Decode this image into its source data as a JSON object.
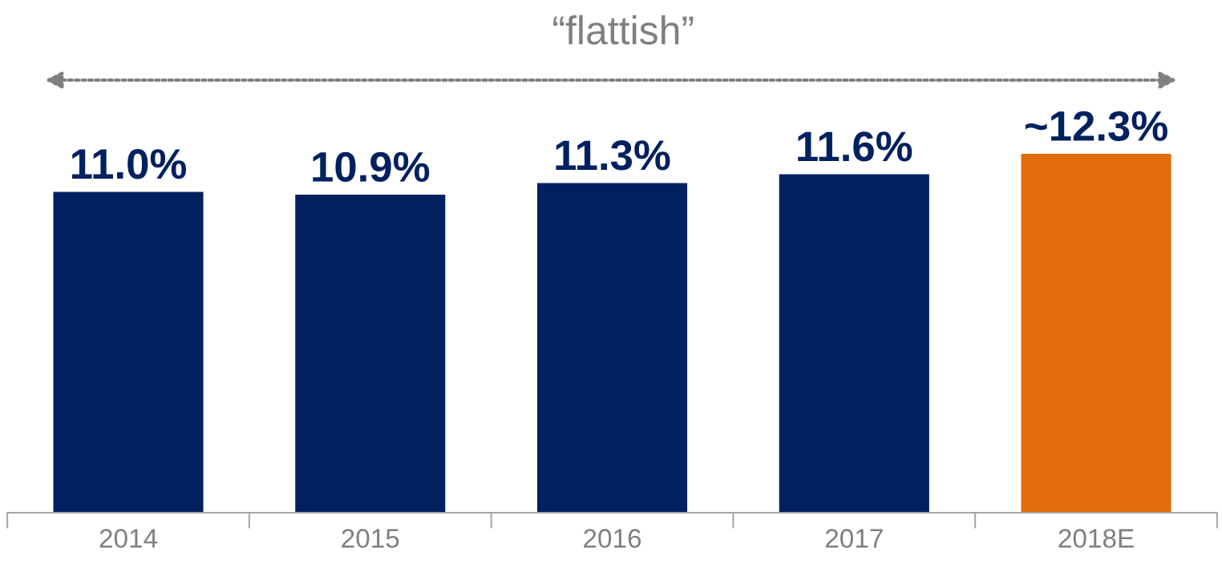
{
  "chart_data": {
    "type": "bar",
    "categories": [
      "2014",
      "2015",
      "2016",
      "2017",
      "2018E"
    ],
    "values": [
      11.0,
      10.9,
      11.3,
      11.6,
      12.3
    ],
    "colors": [
      "#002060",
      "#002060",
      "#002060",
      "#002060",
      "#e36c0a"
    ],
    "value_labels": [
      "11.0%",
      "10.9%",
      "11.3%",
      "11.6%",
      "~12.3%"
    ],
    "annotations": [
      "“flattish”"
    ],
    "grid": false,
    "legend": false
  }
}
